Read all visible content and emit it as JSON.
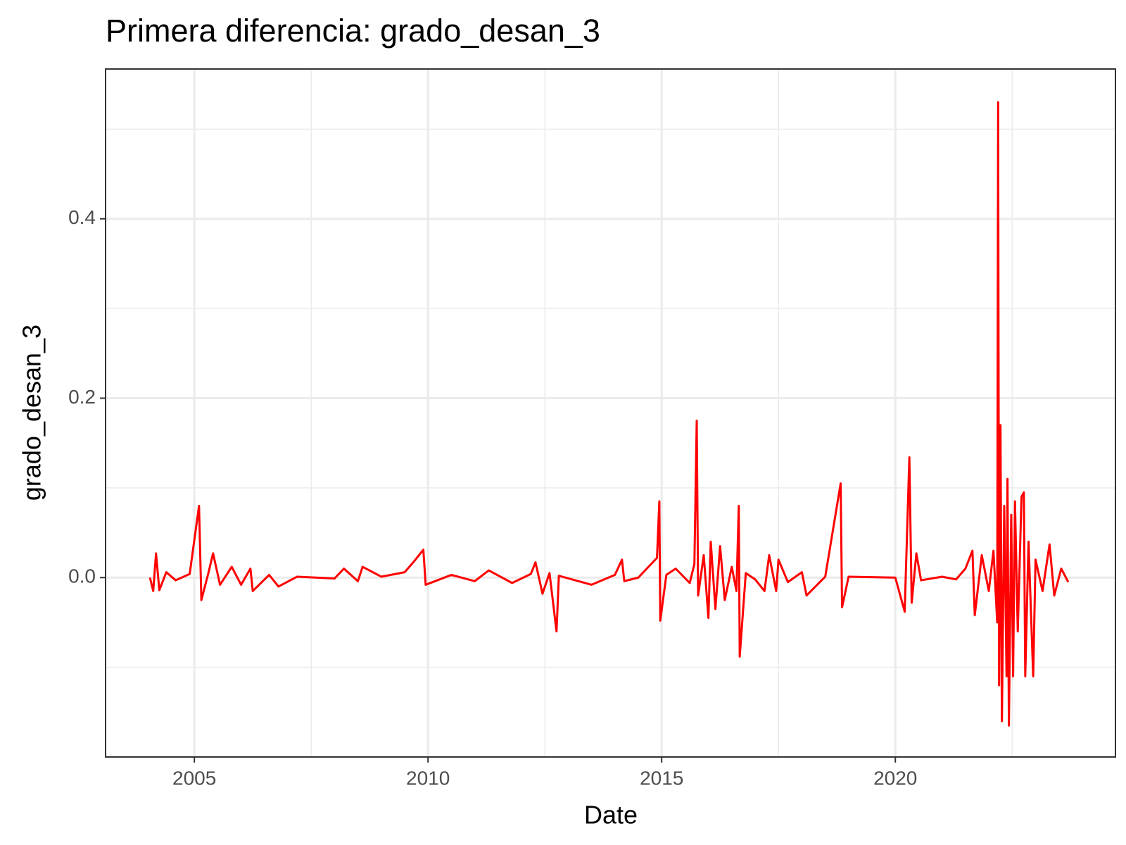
{
  "chart_data": {
    "type": "line",
    "title": "Primera diferencia: grado_desan_3",
    "x_label": "Date",
    "y_label": "grado_desan_3",
    "color": "#ff0000",
    "grid": true,
    "xlim": [
      2003.1,
      2024.71
    ],
    "ylim": [
      -0.2,
      0.567
    ],
    "xticks": [
      2005,
      2010,
      2015,
      2020
    ],
    "yticks": [
      {
        "value": 0,
        "label": "0.0"
      },
      {
        "value": 0.2,
        "label": "0.2"
      },
      {
        "value": 0.4,
        "label": "0.4"
      }
    ],
    "xticks_minor": [
      2007.5,
      2012.5,
      2017.5,
      2022.5
    ],
    "yticks_minor": [
      -0.1,
      0.1,
      0.3,
      0.5
    ],
    "x": [
      2004.05,
      2004.12,
      2004.18,
      2004.25,
      2004.4,
      2004.6,
      2004.9,
      2005.1,
      2005.15,
      2005.3,
      2005.4,
      2005.55,
      2005.8,
      2006.0,
      2006.2,
      2006.25,
      2006.6,
      2006.8,
      2007.2,
      2008.0,
      2008.2,
      2008.5,
      2008.6,
      2009.0,
      2009.5,
      2009.7,
      2009.9,
      2009.95,
      2010.5,
      2011.0,
      2011.3,
      2011.8,
      2012.2,
      2012.3,
      2012.45,
      2012.6,
      2012.75,
      2012.8,
      2013.5,
      2014.0,
      2014.15,
      2014.2,
      2014.5,
      2014.9,
      2014.95,
      2014.97,
      2015.1,
      2015.3,
      2015.6,
      2015.7,
      2015.75,
      2015.78,
      2015.9,
      2016.0,
      2016.05,
      2016.15,
      2016.25,
      2016.35,
      2016.5,
      2016.6,
      2016.65,
      2016.67,
      2016.8,
      2017.0,
      2017.2,
      2017.3,
      2017.45,
      2017.5,
      2017.7,
      2018.0,
      2018.1,
      2018.5,
      2018.83,
      2018.86,
      2019.0,
      2020.0,
      2020.2,
      2020.3,
      2020.35,
      2020.45,
      2020.55,
      2021.0,
      2021.3,
      2021.5,
      2021.65,
      2021.7,
      2021.85,
      2022.0,
      2022.1,
      2022.18,
      2022.2,
      2022.22,
      2022.25,
      2022.28,
      2022.33,
      2022.38,
      2022.4,
      2022.43,
      2022.48,
      2022.52,
      2022.56,
      2022.62,
      2022.7,
      2022.75,
      2022.78,
      2022.85,
      2022.95,
      2023.0,
      2023.15,
      2023.3,
      2023.4,
      2023.55,
      2023.7
    ],
    "values": [
      0,
      -0.015,
      0.027,
      -0.014,
      0.006,
      -0.003,
      0.004,
      0.08,
      -0.025,
      0.005,
      0.027,
      -0.008,
      0.012,
      -0.008,
      0.01,
      -0.015,
      0.003,
      -0.01,
      0.001,
      -0.001,
      0.01,
      -0.004,
      0.012,
      0.001,
      0.006,
      0.018,
      0.031,
      -0.008,
      0.003,
      -0.004,
      0.008,
      -0.006,
      0.004,
      0.017,
      -0.018,
      0.005,
      -0.06,
      0.002,
      -0.008,
      0.003,
      0.02,
      -0.004,
      0,
      0.022,
      0.085,
      -0.048,
      0.003,
      0.01,
      -0.006,
      0.015,
      0.175,
      -0.02,
      0.025,
      -0.045,
      0.04,
      -0.035,
      0.035,
      -0.025,
      0.012,
      -0.015,
      0.08,
      -0.088,
      0.005,
      -0.002,
      -0.015,
      0.025,
      -0.015,
      0.02,
      -0.005,
      0.006,
      -0.02,
      0.001,
      0.105,
      -0.033,
      0.001,
      0,
      -0.038,
      0.134,
      -0.028,
      0.027,
      -0.003,
      0.001,
      -0.002,
      0.01,
      0.03,
      -0.042,
      0.025,
      -0.015,
      0.03,
      -0.05,
      0.53,
      -0.12,
      0.17,
      -0.16,
      0.08,
      -0.11,
      0.11,
      -0.165,
      0.07,
      -0.11,
      0.085,
      -0.06,
      0.09,
      0.095,
      -0.11,
      0.04,
      -0.11,
      0.02,
      -0.015,
      0.037,
      -0.02,
      0.01,
      -0.005
    ]
  }
}
